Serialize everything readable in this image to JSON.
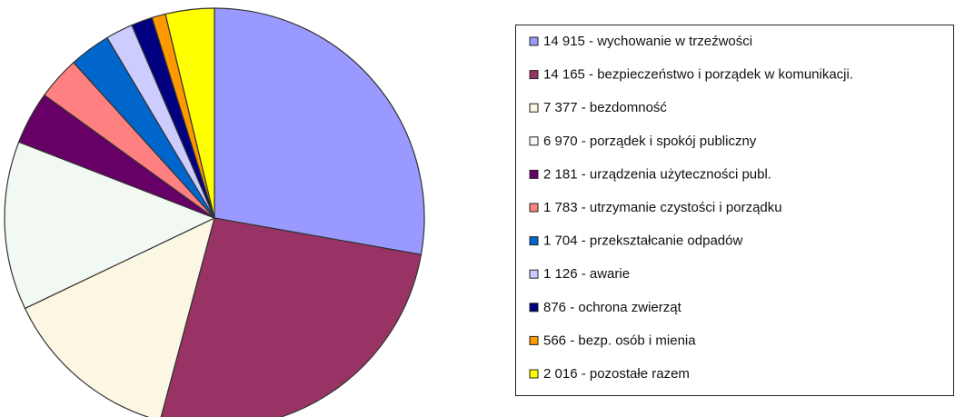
{
  "chart_data": {
    "type": "pie",
    "categories": [
      "14 915 - wychowanie w trzeźwości",
      "14 165 - bezpieczeństwo i porządek w komunikacji.",
      "7 377 - bezdomność",
      "6 970 - porządek i spokój publiczny",
      "2 181 - urządzenia użyteczności publ.",
      "1 783 - utrzymanie czystości i porządku",
      "1 704 - przekształcanie odpadów",
      "1 126 - awarie",
      "876 - ochrona zwierząt",
      "566 - bezp. osób i mienia",
      "2 016 - pozostałe razem"
    ],
    "values": [
      14915,
      14165,
      7377,
      6970,
      2181,
      1783,
      1704,
      1126,
      876,
      566,
      2016
    ],
    "colors": [
      "#9999ff",
      "#993366",
      "#fbf7e2",
      "#f2f8f2",
      "#660066",
      "#ff8080",
      "#0066cc",
      "#ccccff",
      "#000080",
      "#ff9900",
      "#ffff00"
    ],
    "legend": "right"
  }
}
